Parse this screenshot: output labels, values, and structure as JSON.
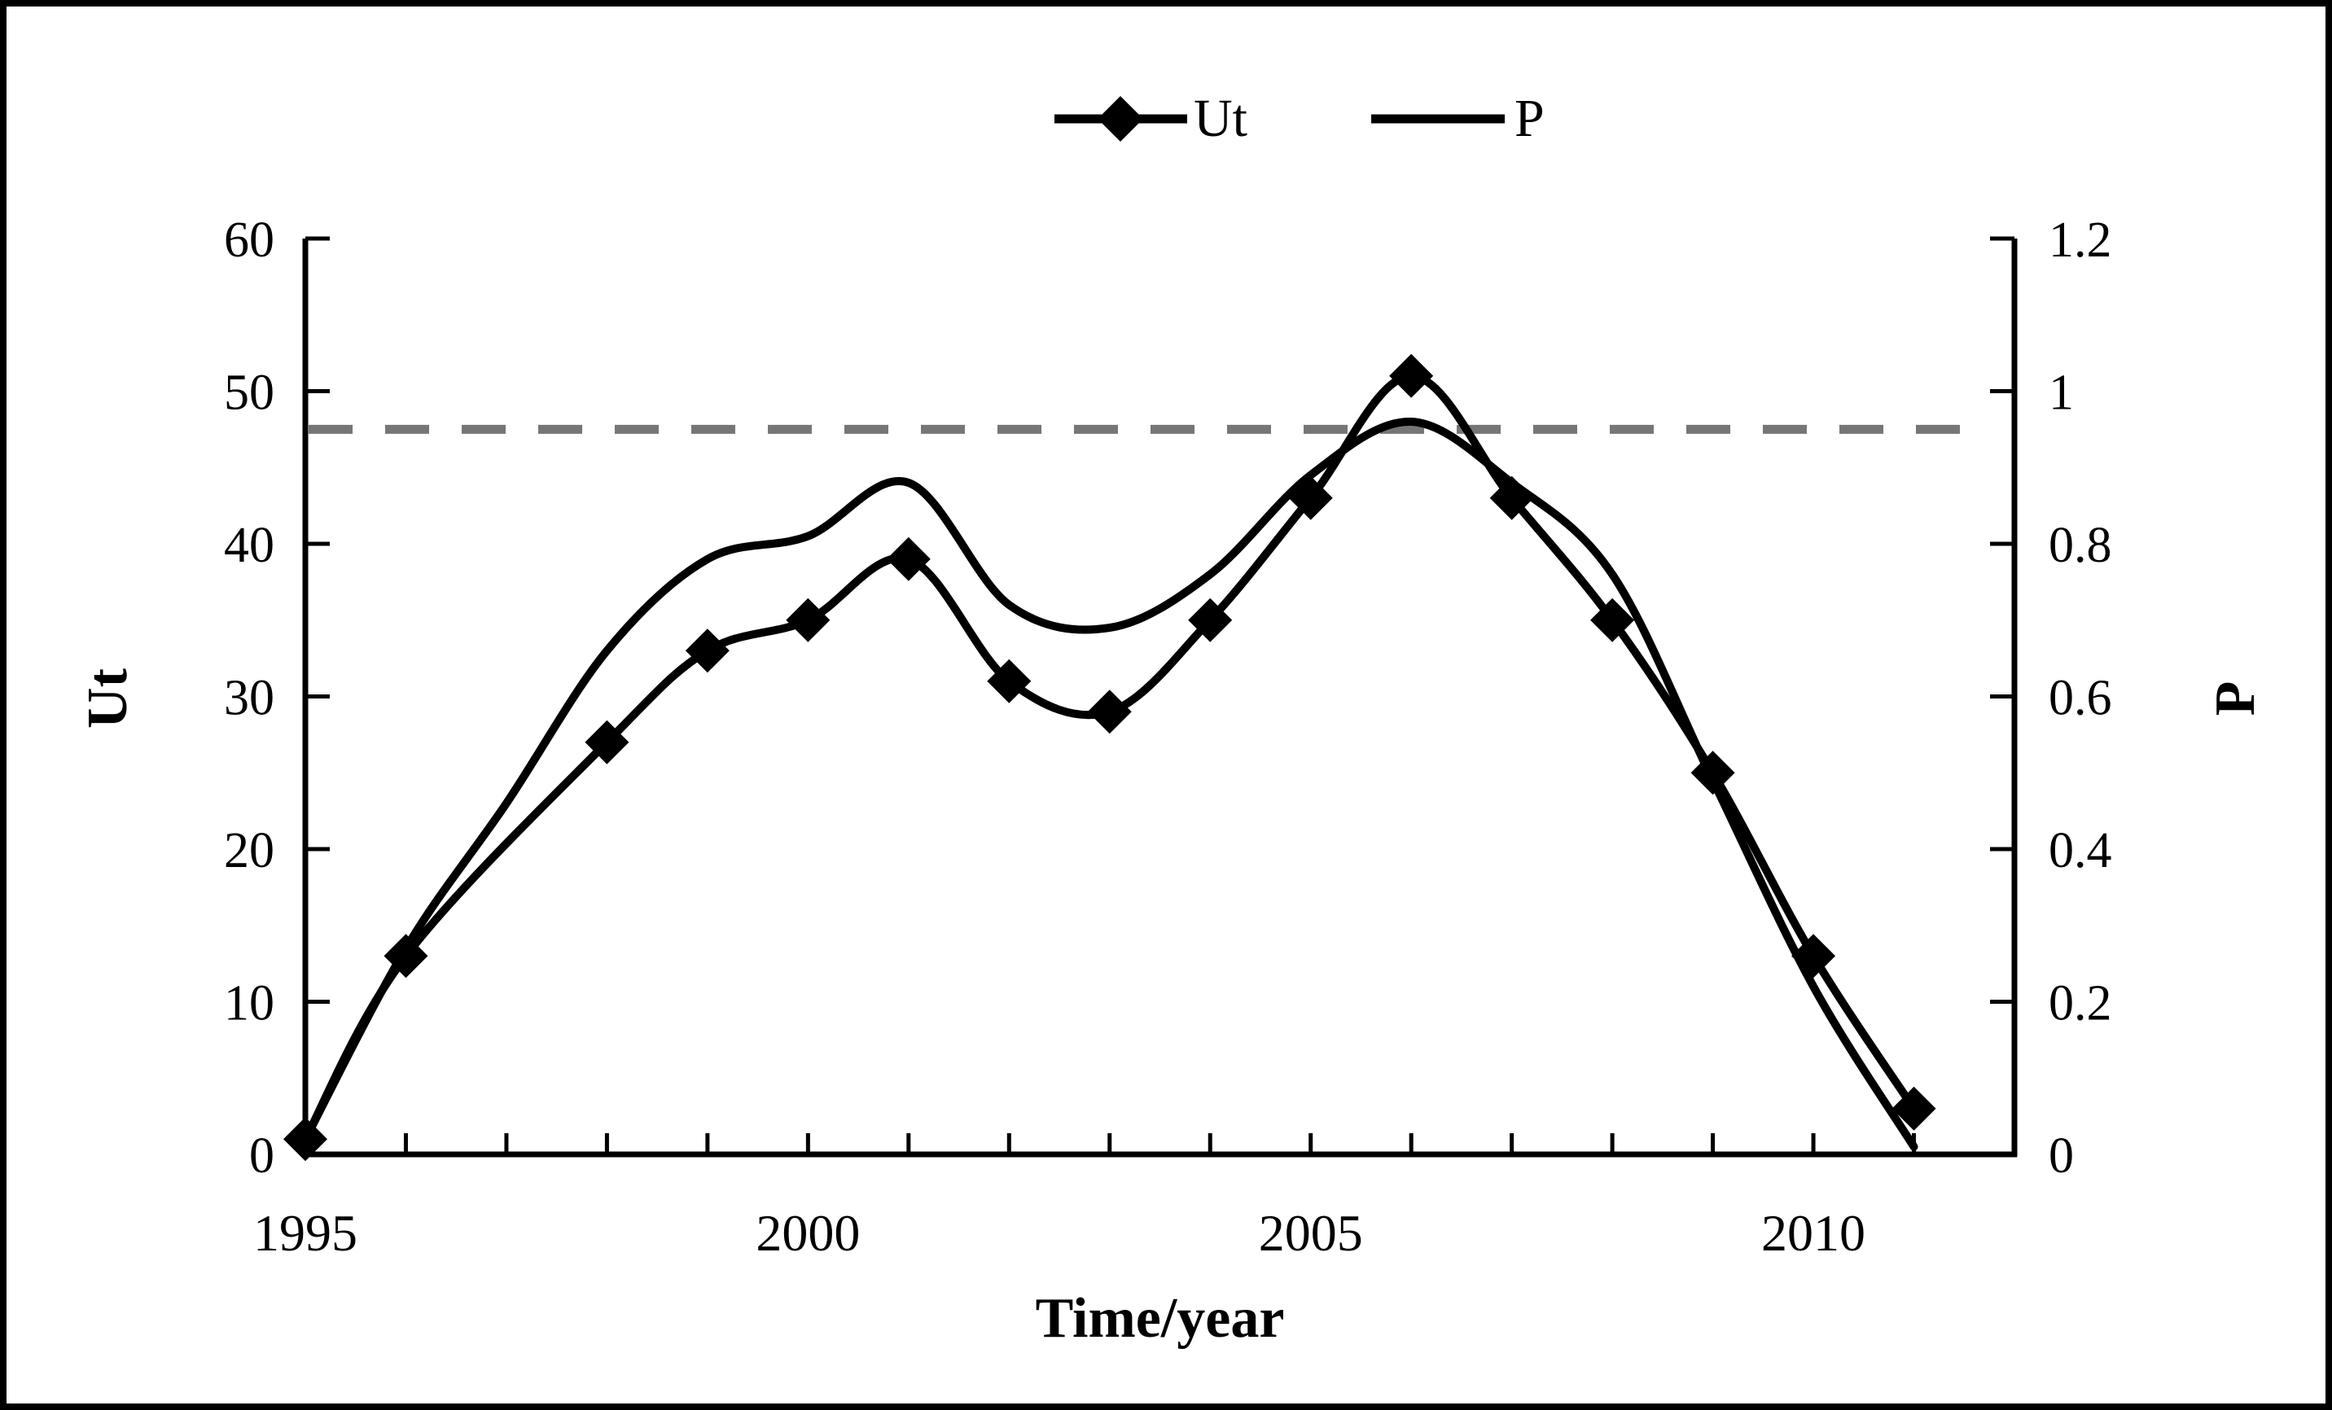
{
  "figure": {
    "background": "#ffffff",
    "border_color": "#000000"
  },
  "legend": {
    "position": "top-center",
    "items": [
      {
        "label": "Ut",
        "marker": "line-with-diamond",
        "color": "#000000"
      },
      {
        "label": "P",
        "marker": "line",
        "color": "#000000"
      }
    ]
  },
  "chart_data": {
    "type": "line",
    "x": [
      1995,
      1996,
      1997,
      1998,
      1999,
      2000,
      2001,
      2002,
      2003,
      2004,
      2005,
      2006,
      2007,
      2008,
      2009,
      2010,
      2011
    ],
    "series": [
      {
        "name": "Ut",
        "axis": "left",
        "marker": "diamond",
        "smooth": true,
        "color": "#000000",
        "values": [
          1,
          13,
          null,
          27,
          33,
          35,
          39,
          31,
          29,
          35,
          43,
          51,
          43,
          35,
          25,
          13,
          3
        ]
      },
      {
        "name": "P",
        "axis": "right",
        "marker": "none",
        "smooth": true,
        "color": "#000000",
        "values": [
          0.02,
          0.27,
          0.46,
          0.66,
          0.78,
          0.81,
          0.88,
          0.72,
          0.69,
          0.76,
          0.89,
          0.96,
          0.88,
          0.76,
          0.49,
          0.22,
          0.01
        ]
      }
    ],
    "threshold_line": {
      "axis": "right",
      "value": 0.95,
      "style": "dashed",
      "color": "#767676"
    },
    "left_axis": {
      "label": "Ut",
      "min": 0,
      "max": 60,
      "tick_step": 10,
      "ticks": [
        0,
        10,
        20,
        30,
        40,
        50,
        60
      ]
    },
    "right_axis": {
      "label": "P",
      "min": 0,
      "max": 1.2,
      "tick_step": 0.2,
      "ticks": [
        0,
        0.2,
        0.4,
        0.6,
        0.8,
        1,
        1.2
      ]
    },
    "x_axis": {
      "label": "Time/year",
      "min": 1995,
      "max": 2012,
      "tick_step": 1,
      "labeled_years": [
        1995,
        2000,
        2005,
        2010
      ]
    },
    "grid": "off",
    "legend_entries": [
      "Ut",
      "P"
    ]
  }
}
